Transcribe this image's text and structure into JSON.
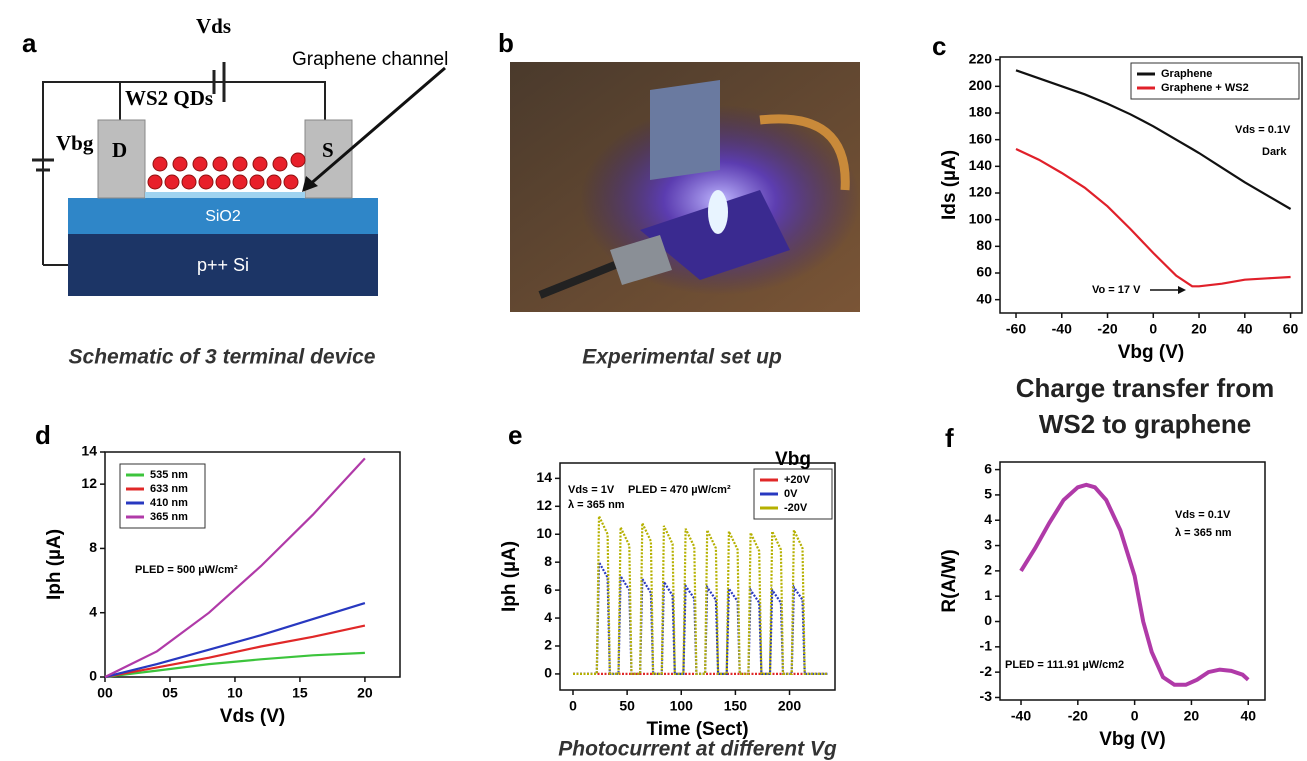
{
  "figure": {
    "panels": [
      {
        "label": "a",
        "caption": "Schematic of 3 terminal device",
        "labels": {
          "vds": "Vds",
          "channel": "Graphene channel",
          "qds": "WS2 QDs",
          "vbg": "Vbg",
          "drain": "D",
          "source": "S",
          "oxide": "SiO2",
          "substrate": "p++ Si"
        }
      },
      {
        "label": "b",
        "caption": "Experimental set up"
      }
    ]
  },
  "chart_data": [
    {
      "type": "line",
      "panel": "c",
      "title": "Charge transfer from WS2 to graphene",
      "xlabel": "Vbg (V)",
      "ylabel": "Ids (µA)",
      "x": [
        -60,
        -50,
        -40,
        -30,
        -20,
        -10,
        0,
        10,
        17,
        20,
        30,
        40,
        50,
        60
      ],
      "series": [
        {
          "name": "Graphene",
          "color": "#111111",
          "values": [
            212,
            206,
            200,
            194,
            187,
            179,
            170,
            160,
            153,
            150,
            139,
            128,
            118,
            108
          ]
        },
        {
          "name": "Graphene + WS2",
          "color": "#e0202a",
          "values": [
            153,
            145,
            135,
            124,
            110,
            93,
            75,
            58,
            50,
            50,
            52,
            55,
            56,
            57
          ]
        }
      ],
      "xlim": [
        -67,
        65
      ],
      "xticks": [
        -60,
        -40,
        -20,
        0,
        20,
        40,
        60
      ],
      "ylim": [
        30,
        222
      ],
      "yticks": [
        40,
        60,
        80,
        100,
        120,
        140,
        160,
        180,
        200,
        220
      ],
      "legend": "upper right",
      "annotations": [
        "Vds = 0.1V",
        "Dark",
        "Vo = 17 V"
      ]
    },
    {
      "type": "line",
      "panel": "d",
      "xlabel": "Vds (V)",
      "ylabel": "Iph (µA)",
      "x": [
        0,
        4,
        8,
        12,
        16,
        20
      ],
      "series": [
        {
          "name": "535 nm",
          "color": "#3cc43c",
          "values": [
            0,
            0.4,
            0.8,
            1.1,
            1.35,
            1.5
          ]
        },
        {
          "name": "633 nm",
          "color": "#e02828",
          "values": [
            0,
            0.6,
            1.2,
            1.9,
            2.5,
            3.2
          ]
        },
        {
          "name": "410 nm",
          "color": "#2838c0",
          "values": [
            0,
            0.8,
            1.7,
            2.6,
            3.6,
            4.6
          ]
        },
        {
          "name": "365 nm",
          "color": "#b03aa8",
          "values": [
            0,
            1.6,
            4.0,
            6.9,
            10.1,
            13.6
          ]
        }
      ],
      "xlim": [
        0,
        22.7
      ],
      "xticks": [
        {
          "value": 0,
          "label": "00"
        },
        {
          "value": 5,
          "label": "05"
        },
        10,
        15,
        20
      ],
      "ylim": [
        0,
        14
      ],
      "yticks": [
        0,
        4,
        8,
        12,
        14
      ],
      "legend": "upper left",
      "annotations": [
        "PLED = 500 µW/cm²"
      ]
    },
    {
      "type": "line",
      "panel": "e",
      "caption": "Photocurrent at different Vg",
      "xlabel": "Time (Sect)",
      "ylabel": "Iph (µA)",
      "legend_title": "Vbg",
      "x": [
        0,
        22,
        24,
        32,
        34,
        42,
        44,
        52,
        54,
        62,
        64,
        72,
        74,
        82,
        84,
        92,
        94,
        102,
        104,
        112,
        114,
        122,
        124,
        132,
        134,
        142,
        144,
        152,
        154,
        162,
        164,
        172,
        174,
        182,
        184,
        192,
        194,
        202,
        204,
        212,
        214,
        235
      ],
      "series": [
        {
          "name": "+20V",
          "color": "#e02828",
          "values": [
            0,
            0,
            0,
            0,
            0,
            0,
            0,
            0,
            0,
            0,
            0,
            0,
            0,
            0,
            0,
            0,
            0,
            0,
            0,
            0,
            0,
            0,
            0,
            0,
            0,
            0,
            0,
            0,
            0,
            0,
            0,
            0,
            0,
            0,
            0,
            0,
            0,
            0,
            0,
            0,
            0,
            0
          ]
        },
        {
          "name": "0V",
          "color": "#2838c0",
          "values": [
            0,
            0,
            8.0,
            6.9,
            0,
            0,
            7.0,
            6.0,
            0,
            0,
            6.8,
            5.8,
            0,
            0,
            6.6,
            5.6,
            0,
            0,
            6.3,
            5.4,
            0,
            0,
            6.2,
            5.3,
            0,
            0,
            6.1,
            5.2,
            0,
            0,
            6.0,
            5.1,
            0,
            0,
            6.0,
            5.1,
            0,
            0,
            6.2,
            5.3,
            0,
            0
          ]
        },
        {
          "name": "-20V",
          "color": "#b5b000",
          "values": [
            0,
            0,
            11.3,
            10.0,
            0,
            0,
            10.5,
            9.2,
            0,
            0,
            10.8,
            9.5,
            0,
            0,
            10.6,
            9.3,
            0,
            0,
            10.4,
            9.1,
            0,
            0,
            10.3,
            9.0,
            0,
            0,
            10.2,
            8.9,
            0,
            0,
            10.1,
            8.8,
            0,
            0,
            10.2,
            8.9,
            0,
            0,
            10.3,
            9.0,
            0,
            0
          ]
        }
      ],
      "xlim": [
        -12,
        242
      ],
      "xticks": [
        0,
        50,
        100,
        150,
        200
      ],
      "ylim": [
        -1.15,
        15.1
      ],
      "yticks": [
        0,
        2,
        4,
        6,
        8,
        10,
        12,
        14
      ],
      "legend": "upper right",
      "annotations": [
        "Vds = 1V",
        "λ = 365 nm",
        "PLED = 470 µW/cm²"
      ]
    },
    {
      "type": "line",
      "panel": "f",
      "xlabel": "Vbg (V)",
      "ylabel": "R(A/W)",
      "x": [
        -40,
        -35,
        -30,
        -25,
        -20,
        -17,
        -14,
        -10,
        -5,
        0,
        3,
        6,
        10,
        14,
        18,
        22,
        26,
        30,
        34,
        38,
        40
      ],
      "series": [
        {
          "color": "#b03aa8",
          "values": [
            2.0,
            2.9,
            3.9,
            4.8,
            5.3,
            5.4,
            5.3,
            4.8,
            3.6,
            1.8,
            0.0,
            -1.2,
            -2.2,
            -2.5,
            -2.5,
            -2.3,
            -2.0,
            -1.9,
            -1.95,
            -2.1,
            -2.3
          ]
        }
      ],
      "xlim": [
        -47.4,
        45.9
      ],
      "xticks": [
        -40,
        -20,
        0,
        20,
        40
      ],
      "ylim": [
        -3.1,
        6.3
      ],
      "yticks": [
        -3,
        -2,
        -1,
        0,
        1,
        2,
        3,
        4,
        5,
        6
      ],
      "annotations": [
        "Vds = 0.1V",
        "λ = 365 nm",
        "PLED = 111.91 µW/cm2"
      ]
    }
  ]
}
